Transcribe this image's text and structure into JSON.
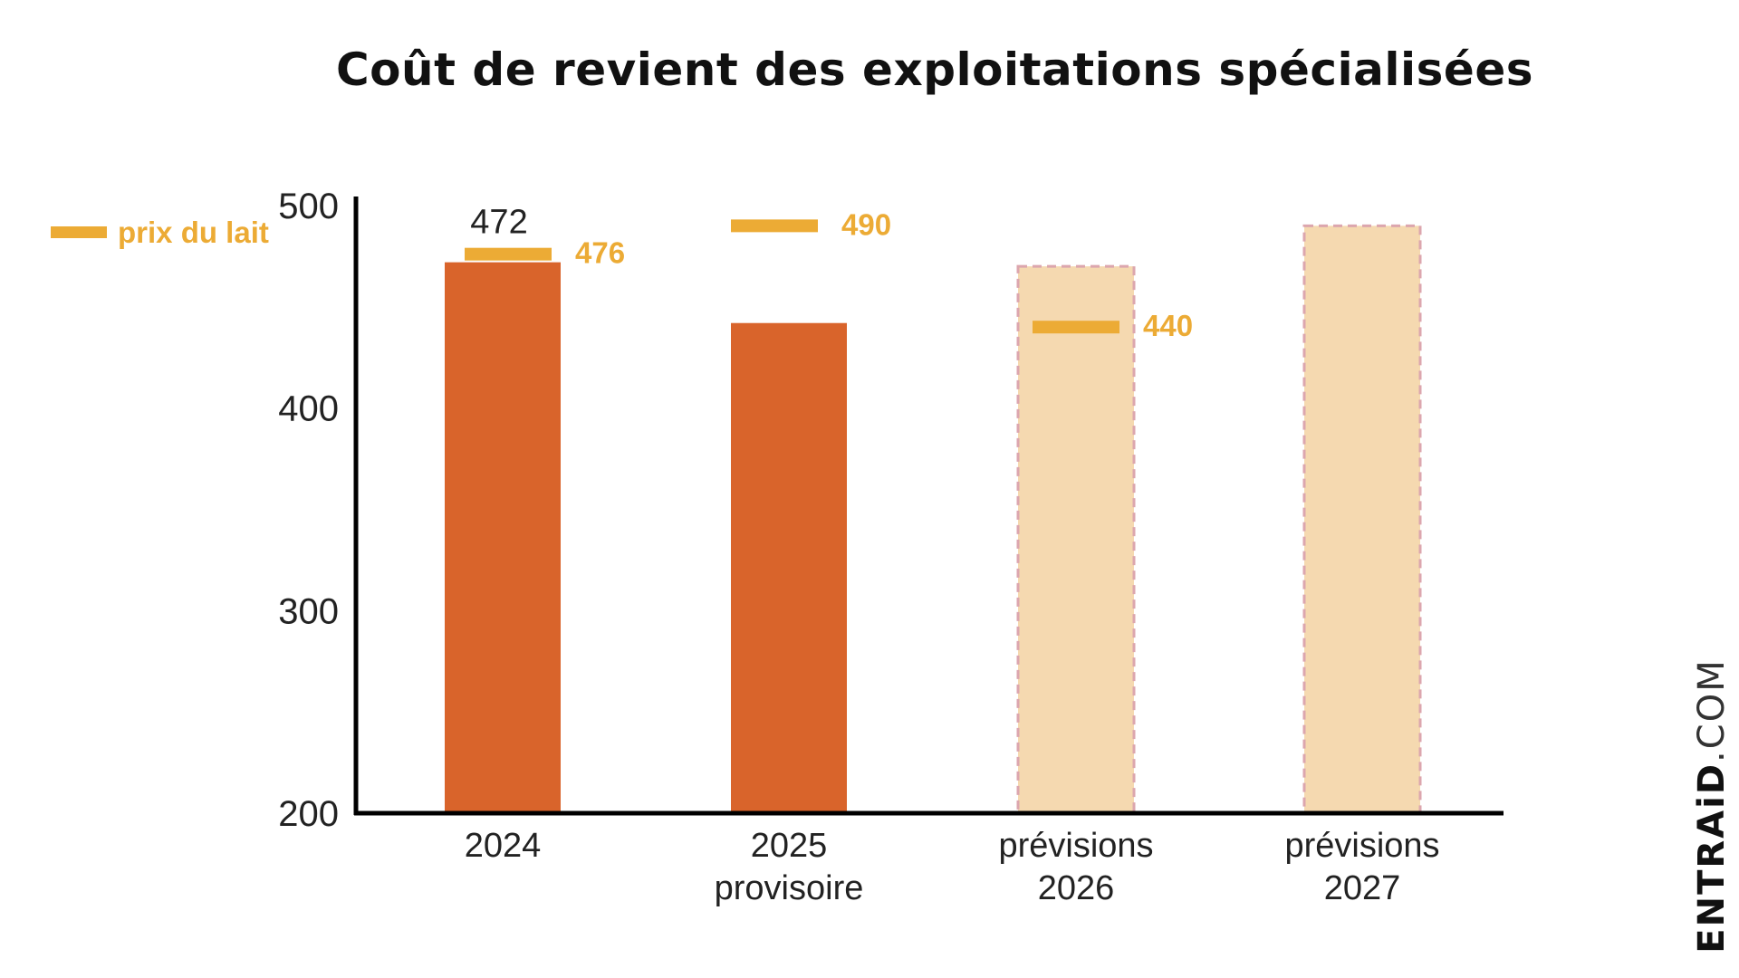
{
  "chart_data": {
    "type": "bar",
    "title": "Coût de revient des exploitations spécialisées",
    "xlabel": "",
    "ylabel": "",
    "ylim": [
      200,
      500
    ],
    "yticks": [
      200,
      300,
      400,
      500
    ],
    "categories": [
      [
        "2024"
      ],
      [
        "2025",
        "provisoire"
      ],
      [
        "prévisions",
        "2026"
      ],
      [
        "prévisions",
        "2027"
      ]
    ],
    "series": [
      {
        "values": [
          472,
          442,
          470,
          490
        ],
        "styles": [
          "actual",
          "actual",
          "forecast",
          "forecast"
        ]
      },
      {
        "name": "prix du lait",
        "values": [
          476,
          490,
          440,
          null
        ],
        "labels": [
          "476",
          "490",
          "440",
          ""
        ]
      }
    ],
    "bar_labels": [
      "472",
      "",
      "",
      ""
    ],
    "grid": false,
    "legend": "top-left",
    "colors": {
      "actual": "#d9642b",
      "forecast": "#f5d9b0",
      "forecast_border": "#dca6ae",
      "price": "#ecab35",
      "axis": "#000000",
      "text": "#222222"
    }
  },
  "watermark": {
    "brand": "ENTRAiD",
    "tld": ".COM"
  }
}
